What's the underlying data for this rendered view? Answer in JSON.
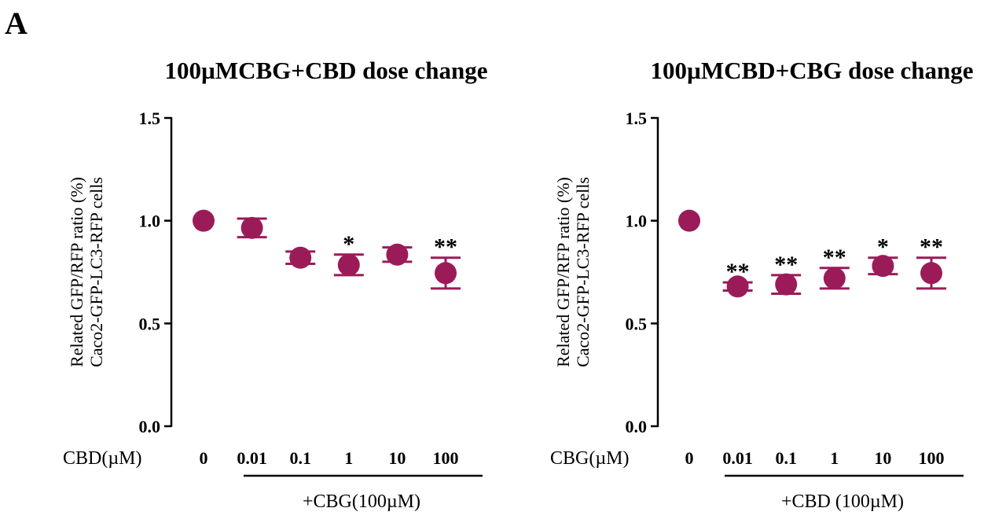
{
  "panel_label": "A",
  "chart_data": [
    {
      "type": "scatter",
      "title": "100µMCBG+CBD dose change",
      "ylabel_lines": [
        "Related GFP/RFP ratio (%)",
        "Caco2-GFP-LC3-RFP cells"
      ],
      "row_label": "CBD(µM)",
      "categories": [
        "0",
        "0.01",
        "0.1",
        "1",
        "10",
        "100"
      ],
      "values": [
        1.0,
        0.965,
        0.82,
        0.785,
        0.835,
        0.745
      ],
      "errors": [
        0.0,
        0.045,
        0.03,
        0.05,
        0.035,
        0.075
      ],
      "significance": [
        "",
        "",
        "",
        "*",
        "",
        "**"
      ],
      "group_label": "+CBG(100µM)",
      "ylim": [
        0,
        1.5
      ],
      "yticks": [
        "0.0",
        "0.5",
        "1.0",
        "1.5"
      ],
      "color": "#9b1b58"
    },
    {
      "type": "scatter",
      "title": "100µMCBD+CBG dose change",
      "ylabel_lines": [
        "Related GFP/RFP ratio (%)",
        "Caco2-GFP-LC3-RFP cells"
      ],
      "row_label": "CBG(µM)",
      "categories": [
        "0",
        "0.01",
        "0.1",
        "1",
        "10",
        "100"
      ],
      "values": [
        1.0,
        0.68,
        0.69,
        0.72,
        0.78,
        0.745
      ],
      "errors": [
        0.0,
        0.02,
        0.045,
        0.05,
        0.04,
        0.075
      ],
      "significance": [
        "",
        "**",
        "**",
        "**",
        "*",
        "**"
      ],
      "group_label": "+CBD (100µM)",
      "ylim": [
        0,
        1.5
      ],
      "yticks": [
        "0.0",
        "0.5",
        "1.0",
        "1.5"
      ],
      "color": "#9b1b58"
    }
  ]
}
